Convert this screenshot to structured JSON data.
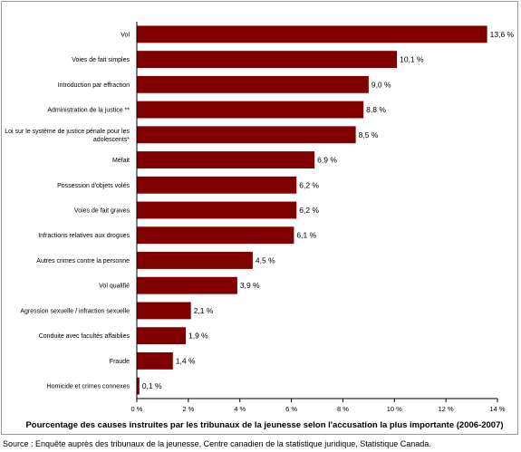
{
  "chart_data": {
    "type": "bar",
    "orientation": "horizontal",
    "categories": [
      "Vol",
      "Voies de fait simples",
      "Introduction par effraction",
      "Administration de la justice **",
      "Loi sur le système de justice pénale pour les adolescents*",
      "Méfait",
      "Possession d'objets volés",
      "Voies de fait graves",
      "Infractions relatives aux drogues",
      "Autres crimes contre la personne",
      "Vol qualifié",
      "Agression sexuelle / infraction sexuelle",
      "Conduite avec facultés affaiblies",
      "Fraude",
      "Homicide et crimes connexes"
    ],
    "values": [
      13.6,
      10.1,
      9.0,
      8.8,
      8.5,
      6.9,
      6.2,
      6.2,
      6.1,
      4.5,
      3.9,
      2.1,
      1.9,
      1.4,
      0.1
    ],
    "value_labels": [
      "13,6 %",
      "10,1 %",
      "9,0 %",
      "8,8 %",
      "8,5 %",
      "6,9 %",
      "6,2 %",
      "6,2 %",
      "6,1 %",
      "4,5 %",
      "3,9 %",
      "2,1 %",
      "1,9 %",
      "1,4 %",
      "0,1 %"
    ],
    "xlim": [
      0,
      14
    ],
    "x_ticks": [
      0,
      2,
      4,
      6,
      8,
      10,
      12,
      14
    ],
    "x_tick_labels": [
      "0 %",
      "2 %",
      "4 %",
      "6 %",
      "8 %",
      "10 %",
      "12 %",
      "14 %"
    ],
    "xlabel": "Pourcentage des causes instruites par les tribunaux de la jeunesse selon l'accusation la plus importante (2006-2007)",
    "ylabel": "",
    "grid": false,
    "legend": "none",
    "bar_color": "#800000"
  },
  "source": "Source : Enquête auprès des tribunaux de la jeunesse, Centre canadien de la statistique juridique, Statistique Canada."
}
